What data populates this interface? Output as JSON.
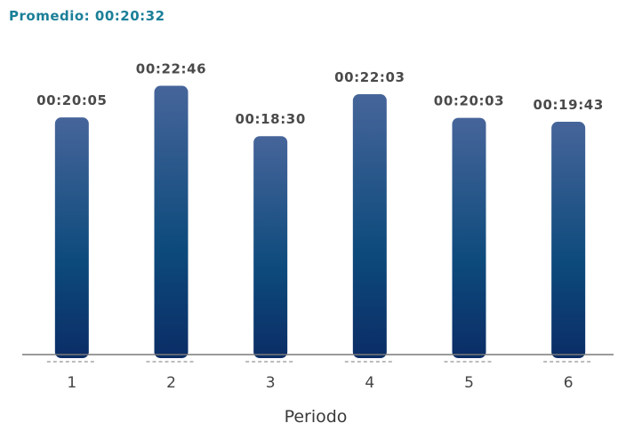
{
  "subtitle": "Promedio: 00:20:32",
  "chart_data": {
    "type": "bar",
    "categories": [
      "1",
      "2",
      "3",
      "4",
      "5",
      "6"
    ],
    "values_seconds": [
      1205,
      1366,
      1110,
      1323,
      1203,
      1183
    ],
    "value_labels": [
      "00:20:05",
      "00:22:46",
      "00:18:30",
      "00:22:03",
      "00:20:03",
      "00:19:43"
    ],
    "xlabel": "Periodo",
    "ylim_seconds": [
      0,
      1400
    ],
    "grid": false,
    "colors": {
      "bar_top": "#46659a",
      "bar_mid": "#0d4a7c",
      "bar_bottom": "#0b2d66",
      "axis": "#7a7a7a"
    }
  }
}
